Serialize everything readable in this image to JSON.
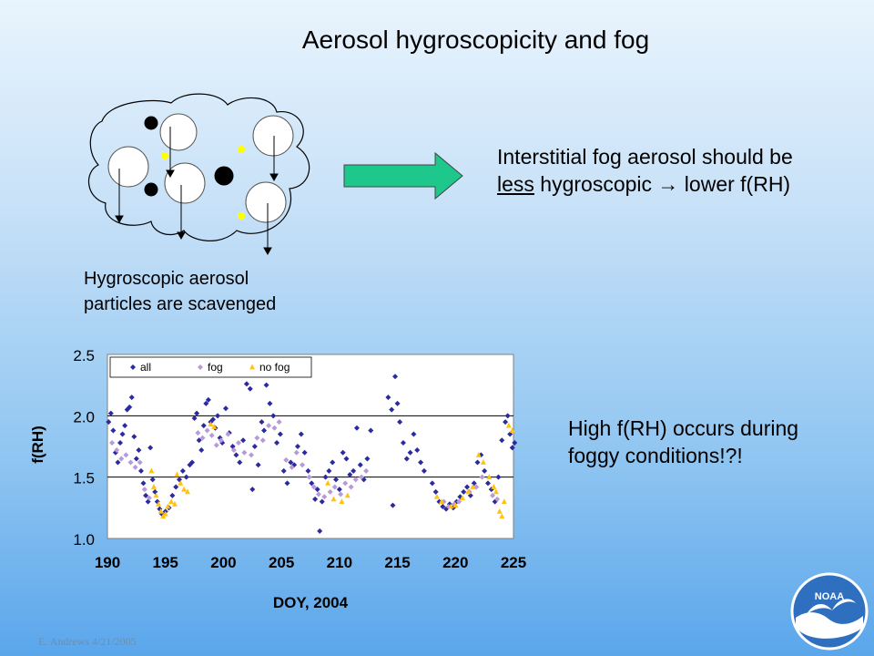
{
  "slide": {
    "title": "Aerosol hygroscopicity and fog",
    "statement_line1": "Interstitial fog aerosol should be",
    "statement_less": "less",
    "statement_rest": " hygroscopic → lower f(RH)",
    "caption_line1": "Hygroscopic aerosol",
    "caption_line2": "particles are scavenged",
    "finding_line1": "High f(RH) occurs during",
    "finding_line2": "foggy conditions!?!",
    "footer": "E. Andrews  4/21/2005",
    "logo_text": "NOAA"
  },
  "colors": {
    "all": "#2b2a9e",
    "fog": "#b79ad8",
    "no_fog": "#ffc20e",
    "arrow": "#1ec88d"
  },
  "icons": {
    "fog_cloud": "fog-cloud-diagram-icon",
    "arrow": "right-arrow-icon",
    "logo": "noaa-logo-icon"
  },
  "chart_data": {
    "type": "scatter",
    "xlabel": "DOY, 2004",
    "ylabel": "f(RH)",
    "xlim": [
      190,
      225
    ],
    "ylim": [
      1.0,
      2.5
    ],
    "xticks": [
      190,
      195,
      200,
      205,
      210,
      215,
      220,
      225
    ],
    "yticks": [
      "1.0",
      "1.5",
      "2.0",
      "2.5"
    ],
    "grid": "horizontal",
    "legend_position": "top-left",
    "series": [
      {
        "name": "all",
        "points": [
          [
            190.1,
            1.95
          ],
          [
            190.3,
            2.02
          ],
          [
            190.5,
            1.88
          ],
          [
            190.7,
            1.7
          ],
          [
            190.9,
            1.62
          ],
          [
            191.1,
            1.78
          ],
          [
            191.3,
            1.85
          ],
          [
            191.5,
            1.92
          ],
          [
            191.7,
            2.05
          ],
          [
            191.9,
            2.07
          ],
          [
            192.1,
            2.15
          ],
          [
            192.3,
            1.83
          ],
          [
            192.5,
            1.65
          ],
          [
            192.7,
            1.72
          ],
          [
            192.9,
            1.55
          ],
          [
            193.1,
            1.45
          ],
          [
            193.3,
            1.35
          ],
          [
            193.5,
            1.3
          ],
          [
            193.7,
            1.74
          ],
          [
            193.9,
            1.48
          ],
          [
            194.1,
            1.38
          ],
          [
            194.3,
            1.3
          ],
          [
            194.5,
            1.24
          ],
          [
            194.7,
            1.2
          ],
          [
            195.0,
            1.22
          ],
          [
            195.3,
            1.25
          ],
          [
            195.6,
            1.35
          ],
          [
            195.9,
            1.42
          ],
          [
            196.2,
            1.48
          ],
          [
            196.5,
            1.55
          ],
          [
            196.8,
            1.5
          ],
          [
            197.1,
            1.6
          ],
          [
            197.3,
            1.62
          ],
          [
            197.5,
            1.98
          ],
          [
            197.7,
            2.02
          ],
          [
            197.9,
            1.8
          ],
          [
            198.1,
            1.72
          ],
          [
            198.3,
            1.92
          ],
          [
            198.5,
            2.1
          ],
          [
            198.7,
            2.13
          ],
          [
            198.9,
            1.95
          ],
          [
            199.1,
            1.97
          ],
          [
            199.3,
            1.9
          ],
          [
            199.5,
            2.0
          ],
          [
            199.7,
            1.82
          ],
          [
            199.9,
            1.78
          ],
          [
            200.2,
            2.06
          ],
          [
            200.5,
            1.86
          ],
          [
            200.8,
            1.75
          ],
          [
            201.1,
            1.68
          ],
          [
            201.4,
            1.62
          ],
          [
            201.7,
            1.8
          ],
          [
            202.0,
            2.26
          ],
          [
            202.3,
            2.22
          ],
          [
            202.5,
            1.4
          ],
          [
            202.7,
            1.75
          ],
          [
            203.0,
            1.6
          ],
          [
            203.3,
            1.95
          ],
          [
            203.5,
            1.88
          ],
          [
            203.7,
            2.25
          ],
          [
            204.0,
            2.1
          ],
          [
            204.3,
            2.0
          ],
          [
            204.6,
            1.78
          ],
          [
            204.9,
            1.85
          ],
          [
            205.2,
            1.55
          ],
          [
            205.5,
            1.45
          ],
          [
            205.8,
            1.62
          ],
          [
            206.1,
            1.6
          ],
          [
            206.4,
            1.75
          ],
          [
            206.7,
            1.85
          ],
          [
            207.0,
            1.7
          ],
          [
            207.3,
            1.55
          ],
          [
            207.6,
            1.45
          ],
          [
            207.9,
            1.32
          ],
          [
            208.1,
            1.4
          ],
          [
            208.3,
            1.06
          ],
          [
            208.5,
            1.3
          ],
          [
            208.8,
            1.5
          ],
          [
            209.1,
            1.55
          ],
          [
            209.4,
            1.62
          ],
          [
            209.7,
            1.48
          ],
          [
            210.0,
            1.4
          ],
          [
            210.3,
            1.7
          ],
          [
            210.6,
            1.65
          ],
          [
            210.9,
            1.52
          ],
          [
            211.2,
            1.55
          ],
          [
            211.5,
            1.9
          ],
          [
            211.8,
            1.6
          ],
          [
            212.1,
            1.48
          ],
          [
            212.4,
            1.65
          ],
          [
            212.7,
            1.88
          ],
          [
            214.2,
            2.15
          ],
          [
            214.5,
            2.05
          ],
          [
            214.8,
            2.32
          ],
          [
            215.0,
            2.1
          ],
          [
            215.2,
            1.95
          ],
          [
            215.5,
            1.78
          ],
          [
            215.8,
            1.65
          ],
          [
            216.1,
            1.7
          ],
          [
            216.4,
            1.85
          ],
          [
            216.7,
            1.72
          ],
          [
            217.0,
            1.62
          ],
          [
            217.3,
            1.55
          ],
          [
            214.6,
            1.27
          ],
          [
            218.0,
            1.45
          ],
          [
            218.3,
            1.38
          ],
          [
            218.6,
            1.3
          ],
          [
            218.9,
            1.26
          ],
          [
            219.2,
            1.24
          ],
          [
            219.5,
            1.28
          ],
          [
            219.8,
            1.25
          ],
          [
            220.1,
            1.3
          ],
          [
            220.4,
            1.34
          ],
          [
            220.7,
            1.38
          ],
          [
            221.0,
            1.42
          ],
          [
            221.3,
            1.35
          ],
          [
            221.6,
            1.45
          ],
          [
            221.9,
            1.62
          ],
          [
            222.2,
            1.68
          ],
          [
            222.5,
            1.55
          ],
          [
            222.8,
            1.45
          ],
          [
            223.1,
            1.4
          ],
          [
            223.4,
            1.3
          ],
          [
            223.7,
            1.5
          ],
          [
            224.0,
            1.8
          ],
          [
            224.3,
            1.95
          ],
          [
            224.5,
            2.0
          ],
          [
            224.7,
            1.85
          ],
          [
            224.9,
            1.74
          ],
          [
            225.1,
            1.78
          ]
        ]
      },
      {
        "name": "fog",
        "points": [
          [
            190.4,
            1.78
          ],
          [
            190.8,
            1.72
          ],
          [
            191.2,
            1.65
          ],
          [
            191.6,
            1.68
          ],
          [
            192.0,
            1.62
          ],
          [
            192.4,
            1.58
          ],
          [
            192.8,
            1.62
          ],
          [
            193.2,
            1.4
          ],
          [
            193.6,
            1.33
          ],
          [
            197.8,
            1.86
          ],
          [
            198.2,
            1.82
          ],
          [
            198.6,
            1.88
          ],
          [
            199.0,
            1.84
          ],
          [
            199.4,
            1.76
          ],
          [
            199.8,
            1.8
          ],
          [
            200.4,
            1.85
          ],
          [
            200.9,
            1.72
          ],
          [
            201.3,
            1.78
          ],
          [
            201.8,
            1.7
          ],
          [
            202.4,
            1.68
          ],
          [
            202.9,
            1.82
          ],
          [
            203.4,
            1.8
          ],
          [
            203.9,
            1.92
          ],
          [
            204.4,
            1.9
          ],
          [
            204.8,
            1.95
          ],
          [
            205.4,
            1.64
          ],
          [
            205.9,
            1.58
          ],
          [
            206.3,
            1.7
          ],
          [
            206.8,
            1.6
          ],
          [
            207.4,
            1.5
          ],
          [
            207.8,
            1.42
          ],
          [
            208.2,
            1.36
          ],
          [
            208.7,
            1.34
          ],
          [
            209.2,
            1.38
          ],
          [
            209.6,
            1.42
          ],
          [
            210.1,
            1.36
          ],
          [
            210.5,
            1.45
          ],
          [
            211.0,
            1.42
          ],
          [
            211.4,
            1.48
          ],
          [
            211.9,
            1.5
          ],
          [
            212.3,
            1.55
          ],
          [
            219.0,
            1.3
          ],
          [
            219.4,
            1.26
          ],
          [
            219.9,
            1.28
          ],
          [
            220.3,
            1.3
          ],
          [
            221.2,
            1.38
          ],
          [
            221.8,
            1.42
          ],
          [
            222.3,
            1.5
          ],
          [
            223.2,
            1.35
          ],
          [
            223.6,
            1.32
          ]
        ]
      },
      {
        "name": "no fog",
        "points": [
          [
            193.8,
            1.55
          ],
          [
            194.0,
            1.42
          ],
          [
            194.2,
            1.35
          ],
          [
            194.4,
            1.28
          ],
          [
            194.6,
            1.22
          ],
          [
            194.8,
            1.18
          ],
          [
            195.0,
            1.2
          ],
          [
            195.2,
            1.26
          ],
          [
            195.5,
            1.3
          ],
          [
            195.8,
            1.28
          ],
          [
            196.0,
            1.52
          ],
          [
            196.3,
            1.45
          ],
          [
            196.6,
            1.4
          ],
          [
            196.9,
            1.38
          ],
          [
            198.9,
            1.93
          ],
          [
            199.2,
            1.91
          ],
          [
            209.0,
            1.45
          ],
          [
            209.5,
            1.32
          ],
          [
            210.2,
            1.3
          ],
          [
            210.7,
            1.35
          ],
          [
            218.4,
            1.34
          ],
          [
            218.8,
            1.3
          ],
          [
            219.6,
            1.26
          ],
          [
            220.0,
            1.27
          ],
          [
            220.6,
            1.33
          ],
          [
            221.1,
            1.38
          ],
          [
            221.5,
            1.42
          ],
          [
            222.0,
            1.68
          ],
          [
            222.4,
            1.62
          ],
          [
            222.9,
            1.5
          ],
          [
            223.3,
            1.42
          ],
          [
            223.5,
            1.38
          ],
          [
            223.8,
            1.22
          ],
          [
            224.0,
            1.18
          ],
          [
            224.2,
            1.3
          ],
          [
            224.6,
            1.92
          ],
          [
            224.9,
            1.88
          ]
        ]
      }
    ]
  }
}
